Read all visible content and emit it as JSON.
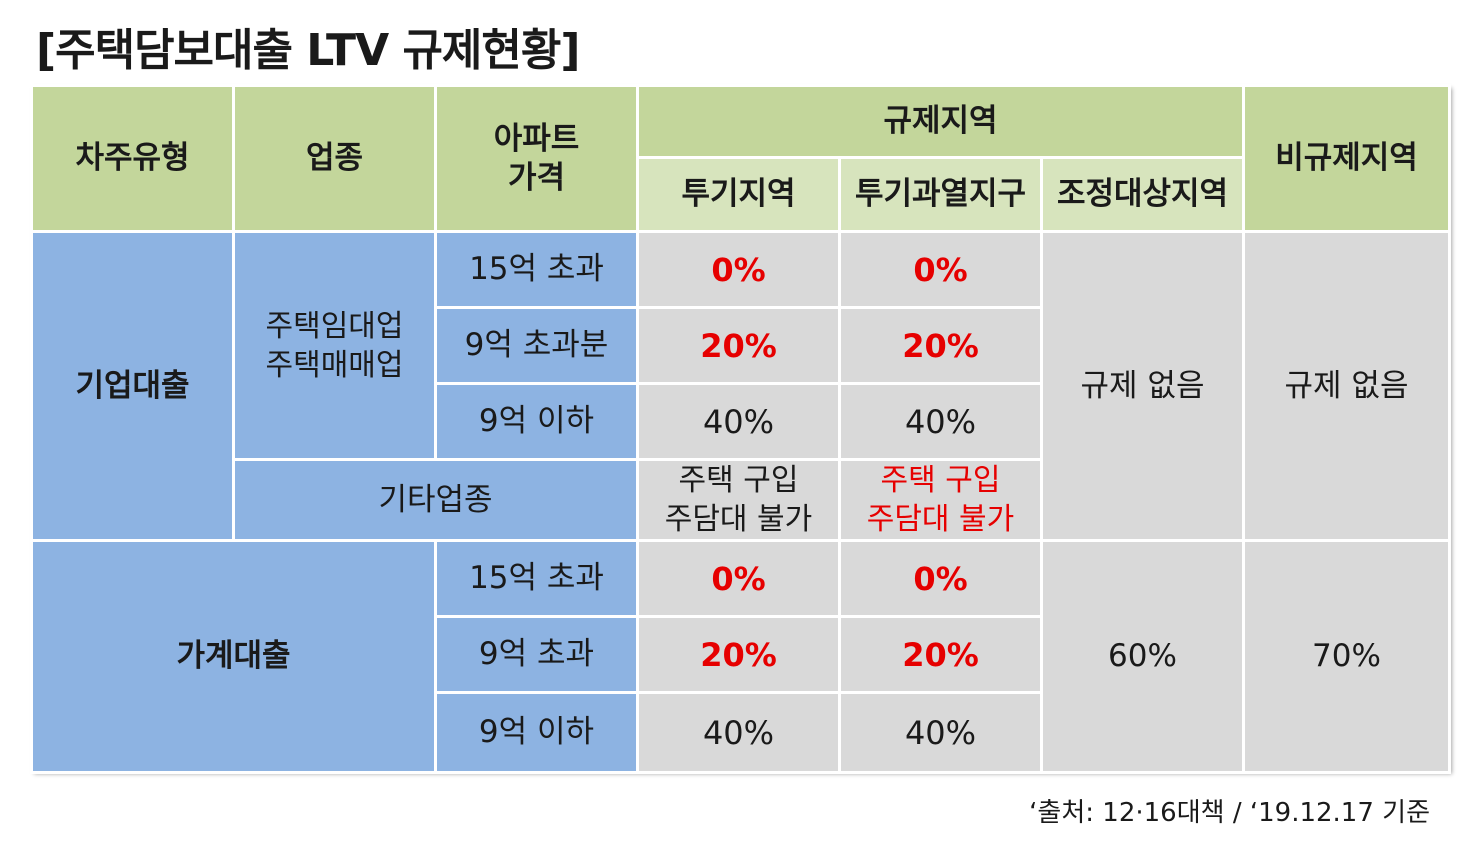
{
  "title": "[주택담보대출 LTV 규제현황]",
  "headers": {
    "borrower_type": "차주유형",
    "industry": "업종",
    "apt_price": "아파트\n가격",
    "regulated": "규제지역",
    "speculation_area": "투기지역",
    "overheated_district": "투기과열지구",
    "adjustment_area": "조정대상지역",
    "non_regulated": "비규제지역"
  },
  "corporate": {
    "label": "기업대출",
    "industry_housing": "주택임대업\n주택매매업",
    "rows": [
      {
        "price": "15억 초과",
        "speculation": "0%",
        "overheated": "0%"
      },
      {
        "price": "9억 초과분",
        "speculation": "20%",
        "overheated": "20%"
      },
      {
        "price": "9억 이하",
        "speculation": "40%",
        "overheated": "40%"
      }
    ],
    "adjustment": "규제 없음",
    "non_regulated": "규제 없음",
    "other_industry": "기타업종",
    "other_speculation": "주택 구입\n주담대 불가",
    "other_overheated": "주택 구입\n주담대 불가"
  },
  "household": {
    "label": "가계대출",
    "rows": [
      {
        "price": "15억 초과",
        "speculation": "0%",
        "overheated": "0%"
      },
      {
        "price": "9억 초과",
        "speculation": "20%",
        "overheated": "20%"
      },
      {
        "price": "9억 이하",
        "speculation": "40%",
        "overheated": "40%"
      }
    ],
    "adjustment": "60%",
    "non_regulated": "70%"
  },
  "source": "‘출처: 12·16대책 / ‘19.12.17 기준",
  "colors": {
    "header_dark": "#c3d69b",
    "header_light": "#d7e4bd",
    "blue_cell": "#8db3e2",
    "gray_cell": "#d9d9d9",
    "highlight_red": "#e60000"
  }
}
